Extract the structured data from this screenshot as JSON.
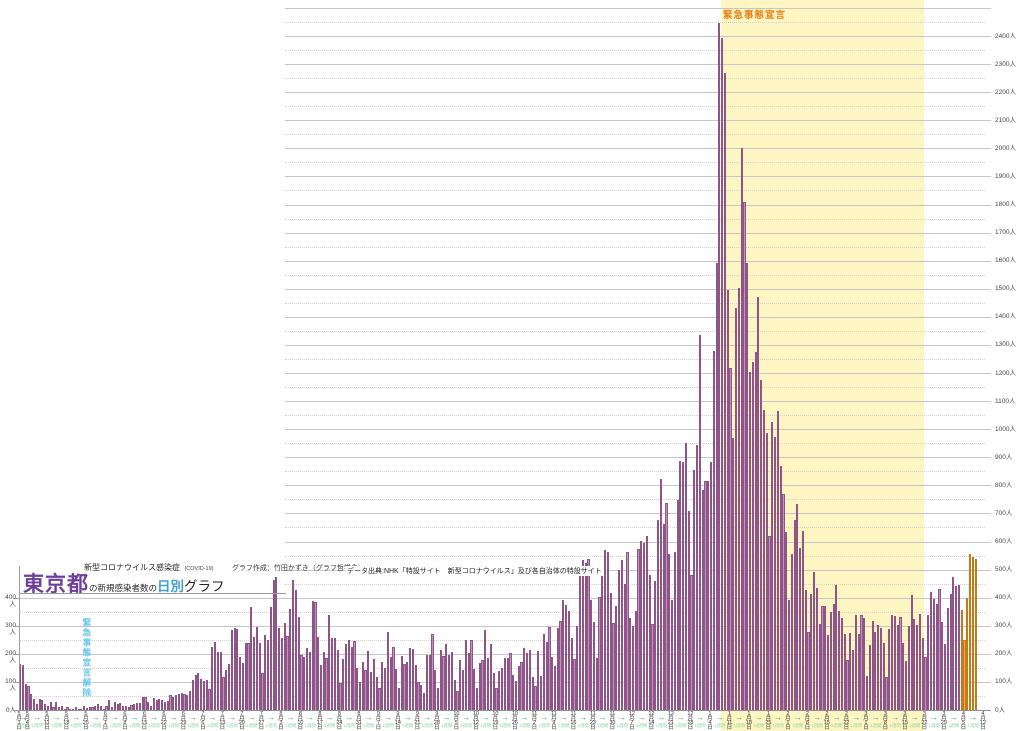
{
  "header": {
    "disease_name": "新型コロナウイルス感染症",
    "covid_tag": "(COVID-19)",
    "credit": "グラフ作成：竹田かずき（グラフ哲学舎）",
    "title_main": "東京都",
    "title_mid": "の新規感染者数の",
    "title_daily": "日別",
    "title_suffix": "グラフ",
    "data_source": "データ出典:NHK「特設サイト　新型コロナウイルス」及び各自治体の特設サイト"
  },
  "annotations": {
    "emergency_label": "緊急事態宣言",
    "emergency_lifted_label": "緊急事態宣言解除",
    "week_arrow_glyph": "→",
    "week_arrow_label": "1週間"
  },
  "chart_data": {
    "type": "bar",
    "title": "東京都の新規感染者数の日別グラフ",
    "unit": "人",
    "ylim": [
      0,
      2500
    ],
    "y_tick_interval": 100,
    "y_minor_tick_interval": 50,
    "y_axis_labels_right_max": 2400,
    "y_axis_labels_left_max": 400,
    "x_tick_labels": [
      "5月1日",
      "5月4日",
      "5月11日",
      "5月18日",
      "5月25日",
      "6月1日",
      "6月8日",
      "6月15日",
      "6月22日",
      "6月29日",
      "7月6日",
      "7月13日",
      "7月20日",
      "7月27日",
      "8月3日",
      "8月10日",
      "8月17日",
      "8月24日",
      "8月31日",
      "9月7日",
      "9月14日",
      "9月21日",
      "9月28日",
      "10月5日",
      "10月12日",
      "10月19日",
      "10月26日",
      "11月2日",
      "11月9日",
      "11月16日",
      "11月23日",
      "11月30日",
      "12月7日",
      "12月14日",
      "12月21日",
      "12月28日",
      "1月4日",
      "1月11日",
      "1月18日",
      "1月25日",
      "2月1日",
      "2月8日",
      "2月15日",
      "2月22日",
      "3月1日",
      "3月8日",
      "3月15日",
      "3月22日",
      "3月29日",
      "4月5日",
      "4月12日"
    ],
    "x_tick_day_indices": [
      0,
      3,
      10,
      17,
      24,
      31,
      38,
      45,
      52,
      59,
      66,
      73,
      80,
      87,
      94,
      101,
      108,
      115,
      122,
      129,
      136,
      143,
      150,
      157,
      164,
      171,
      178,
      185,
      192,
      199,
      206,
      213,
      220,
      227,
      234,
      241,
      248,
      255,
      262,
      269,
      276,
      283,
      290,
      297,
      304,
      311,
      318,
      325,
      332,
      339,
      346
    ],
    "values": [
      165,
      160,
      93,
      87,
      58,
      38,
      23,
      39,
      36,
      22,
      15,
      28,
      10,
      30,
      9,
      14,
      5,
      10,
      5,
      5,
      11,
      3,
      2,
      14,
      8,
      10,
      11,
      15,
      22,
      14,
      5,
      13,
      34,
      12,
      28,
      20,
      26,
      14,
      13,
      12,
      18,
      22,
      25,
      24,
      47,
      48,
      27,
      16,
      41,
      35,
      39,
      35,
      29,
      31,
      55,
      48,
      54,
      57,
      60,
      58,
      54,
      67,
      107,
      124,
      131,
      111,
      102,
      106,
      75,
      224,
      243,
      206,
      206,
      119,
      143,
      165,
      286,
      293,
      290,
      188,
      168,
      237,
      238,
      366,
      260,
      295,
      239,
      131,
      266,
      250,
      367,
      463,
      472,
      292,
      258,
      309,
      263,
      360,
      462,
      429,
      331,
      197,
      188,
      222,
      206,
      389,
      385,
      260,
      161,
      207,
      186,
      339,
      258,
      256,
      212,
      95,
      182,
      236,
      250,
      226,
      247,
      148,
      100,
      170,
      141,
      211,
      136,
      181,
      116,
      77,
      170,
      149,
      276,
      187,
      226,
      146,
      80,
      191,
      163,
      171,
      220,
      218,
      162,
      98,
      88,
      59,
      195,
      195,
      270,
      144,
      78,
      212,
      194,
      235,
      196,
      207,
      108,
      66,
      177,
      142,
      248,
      203,
      249,
      146,
      78,
      166,
      177,
      284,
      184,
      235,
      132,
      78,
      139,
      150,
      185,
      186,
      203,
      124,
      102,
      158,
      171,
      221,
      204,
      215,
      116,
      87,
      209,
      122,
      269,
      242,
      294,
      189,
      157,
      293,
      317,
      393,
      374,
      352,
      255,
      180,
      298,
      493,
      534,
      522,
      539,
      391,
      314,
      186,
      401,
      481,
      570,
      561,
      418,
      311,
      372,
      500,
      533,
      449,
      561,
      327,
      299,
      352,
      572,
      602,
      595,
      621,
      480,
      305,
      460,
      678,
      822,
      664,
      736,
      556,
      392,
      563,
      748,
      888,
      884,
      949,
      708,
      481,
      856,
      944,
      1337,
      783,
      814,
      816,
      884,
      1278,
      1591,
      2447,
      2392,
      2268,
      1494,
      1219,
      970,
      1433,
      1502,
      2001,
      1809,
      1592,
      1204,
      1240,
      1274,
      1471,
      1175,
      1070,
      986,
      618,
      1026,
      973,
      1064,
      868,
      769,
      633,
      393,
      556,
      676,
      734,
      577,
      639,
      429,
      276,
      412,
      491,
      434,
      307,
      369,
      371,
      266,
      350,
      378,
      445,
      353,
      327,
      272,
      178,
      275,
      213,
      340,
      270,
      337,
      329,
      121,
      232,
      316,
      279,
      301,
      293,
      237,
      116,
      290,
      340,
      335,
      304,
      330,
      239,
      175,
      300,
      409,
      323,
      303,
      342,
      256,
      187,
      337,
      420,
      394,
      376,
      430,
      313,
      234,
      364,
      414,
      475,
      440,
      446,
      355,
      249,
      399,
      555,
      545,
      537
    ],
    "emergency_band": {
      "label": "緊急事態宣言",
      "start_index": 252,
      "end_index": 324
    },
    "lifted_annotation": {
      "label": "緊急事態宣言解除",
      "index": 24
    },
    "recent_highlight": {
      "orange_start_index": 338
    },
    "colors": {
      "bar_fill": "#c293bf",
      "bar_border": "#8f5589",
      "bar_recent_fill": "#f2a94f",
      "bar_recent_border": "#c47a17",
      "band_fill": "#fdf6c3",
      "emergency_text": "#e8861e",
      "lifted_text": "#66c5ec",
      "title_accent": "#6d3f9c",
      "daily_accent": "#3e9fd4",
      "week_arrow": "#2fae62"
    }
  }
}
